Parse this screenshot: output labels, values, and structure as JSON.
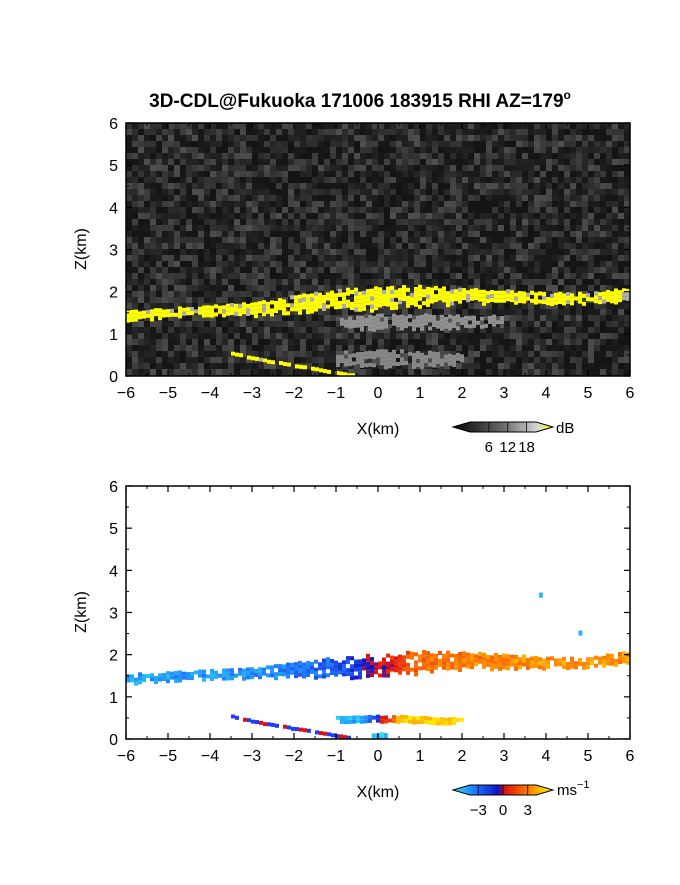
{
  "title": "3D-CDL@Fukuoka 171006 183915 RHI AZ=179",
  "title_suffix": "o",
  "chart_data": [
    {
      "type": "heatmap",
      "field": "reflectivity",
      "xlabel": "X(km)",
      "ylabel": "Z(km)",
      "xlim": [
        -6,
        6
      ],
      "ylim": [
        0,
        6
      ],
      "xticks": [
        "-6",
        "-5",
        "-4",
        "-3",
        "-2",
        "-1",
        "0",
        "1",
        "2",
        "3",
        "4",
        "5",
        "6"
      ],
      "yticks": [
        "0",
        "1",
        "2",
        "3",
        "4",
        "5",
        "6"
      ],
      "colorbar": {
        "unit": "dB",
        "ticks": [
          "6",
          "12",
          "18"
        ],
        "min": 0,
        "max": 21
      },
      "background": "noise",
      "layers": [
        {
          "x": [
            -6,
            -5,
            -4,
            -3,
            -2,
            -1,
            0,
            1,
            2,
            3,
            4,
            5,
            6
          ],
          "z_center": [
            1.45,
            1.52,
            1.58,
            1.62,
            1.72,
            1.82,
            1.85,
            1.92,
            1.93,
            1.9,
            1.85,
            1.88,
            1.95
          ],
          "thickness": [
            0.18,
            0.18,
            0.2,
            0.25,
            0.35,
            0.4,
            0.45,
            0.4,
            0.3,
            0.25,
            0.22,
            0.2,
            0.3
          ],
          "value": 20
        },
        {
          "x": [
            -3.5,
            -3,
            -2,
            -1,
            -0.6
          ],
          "z_center": [
            0.55,
            0.42,
            0.25,
            0.08,
            0.02
          ],
          "thickness": [
            0.07,
            0.07,
            0.07,
            0.07,
            0.06
          ],
          "value": 20
        },
        {
          "x": [
            -1.0,
            0,
            1.0,
            2.0
          ],
          "z_center": [
            0.4,
            0.45,
            0.42,
            0.4
          ],
          "thickness": [
            0.3,
            0.35,
            0.3,
            0.25
          ],
          "value": 10
        },
        {
          "x": [
            -1,
            0,
            1,
            2,
            3
          ],
          "z_center": [
            1.3,
            1.3,
            1.3,
            1.3,
            1.35
          ],
          "thickness": [
            0.2,
            0.3,
            0.3,
            0.25,
            0.2
          ],
          "value": 11
        }
      ]
    },
    {
      "type": "heatmap",
      "field": "doppler_velocity",
      "xlabel": "X(km)",
      "ylabel": "Z(km)",
      "xlim": [
        -6,
        6
      ],
      "ylim": [
        0,
        6
      ],
      "xticks": [
        "-6",
        "-5",
        "-4",
        "-3",
        "-2",
        "-1",
        "0",
        "1",
        "2",
        "3",
        "4",
        "5",
        "6"
      ],
      "yticks": [
        "0",
        "1",
        "2",
        "3",
        "4",
        "5",
        "6"
      ],
      "colorbar": {
        "unit": "ms",
        "unit_exp": "−1",
        "ticks": [
          "−3",
          "0",
          "3"
        ],
        "min": -4,
        "max": 4
      },
      "layers": [
        {
          "x": [
            -6,
            -5,
            -4,
            -3,
            -2,
            -1,
            0,
            1,
            2,
            3,
            4,
            5,
            6
          ],
          "z_center": [
            1.45,
            1.5,
            1.55,
            1.58,
            1.65,
            1.72,
            1.75,
            1.85,
            1.88,
            1.85,
            1.82,
            1.85,
            1.95
          ],
          "thickness": [
            0.18,
            0.18,
            0.18,
            0.2,
            0.3,
            0.4,
            0.45,
            0.45,
            0.35,
            0.28,
            0.22,
            0.2,
            0.25
          ],
          "velocity": [
            -2.8,
            -2.8,
            -2.7,
            -2.6,
            -2.3,
            -1.6,
            0.0,
            1.8,
            2.0,
            2.2,
            2.4,
            2.5,
            2.3
          ]
        },
        {
          "x": [
            -3.5,
            -3,
            -2,
            -1,
            -0.6
          ],
          "z_center": [
            0.55,
            0.42,
            0.25,
            0.08,
            0.02
          ],
          "thickness": [
            0.07,
            0.07,
            0.07,
            0.07,
            0.06
          ],
          "velocity": [
            "alt",
            "alt",
            "alt",
            "alt",
            "alt"
          ]
        },
        {
          "x": [
            -1.0,
            -0.5,
            0,
            0.5,
            1.0,
            2.0
          ],
          "z_center": [
            0.5,
            0.5,
            0.5,
            0.5,
            0.48,
            0.45
          ],
          "thickness": [
            0.1,
            0.12,
            0.14,
            0.14,
            0.12,
            0.1
          ],
          "velocity": [
            -3.2,
            -3.0,
            -0.5,
            3.2,
            3.3,
            3.4
          ]
        },
        {
          "x": [
            -0.15,
            0.15
          ],
          "z_center": [
            0.08,
            0.08
          ],
          "thickness": [
            0.14,
            0.14
          ],
          "velocity": [
            -3.5,
            -3.5
          ]
        }
      ],
      "points": [
        {
          "x": 3.88,
          "z": 3.4,
          "velocity": -3.3
        },
        {
          "x": 4.82,
          "z": 2.5,
          "velocity": -3.2
        }
      ]
    }
  ]
}
